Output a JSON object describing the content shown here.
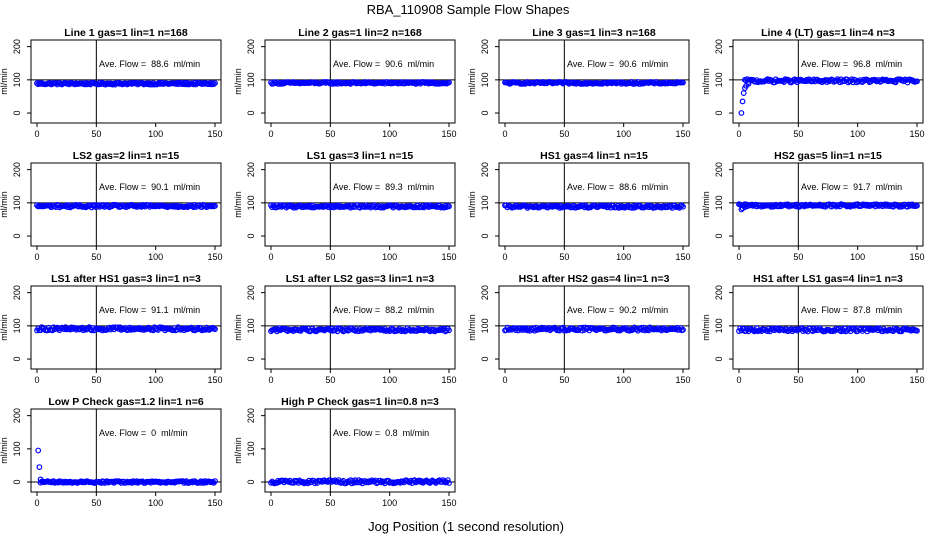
{
  "figure": {
    "title": "RBA_110908  Sample Flow Shapes",
    "xlabel": "Jog Position (1 second resolution)",
    "panel_ylabel": "ml/min",
    "xticks": [
      "0",
      "50",
      "100",
      "150"
    ],
    "yticks": [
      "0",
      "100",
      "200"
    ],
    "colors": {
      "points": "#0000ff",
      "lines": "#000000",
      "background": "#ffffff"
    }
  },
  "chart_data": [
    {
      "type": "scatter",
      "title": "Line 1 gas=1 lin=1 n=168",
      "annotation": "Ave. Flow =  88.6  ml/min",
      "mean": 88.6,
      "xlim": [
        0,
        150
      ],
      "ylim": [
        -30,
        220
      ],
      "hline_y": 100,
      "vline_x": 50,
      "x_range": [
        0,
        150
      ],
      "level": 88.6,
      "spread": 3
    },
    {
      "type": "scatter",
      "title": "Line 2 gas=1 lin=2 n=168",
      "annotation": "Ave. Flow =  90.6  ml/min",
      "mean": 90.6,
      "xlim": [
        0,
        150
      ],
      "ylim": [
        -30,
        220
      ],
      "hline_y": 100,
      "vline_x": 50,
      "x_range": [
        0,
        150
      ],
      "level": 90.6,
      "spread": 3
    },
    {
      "type": "scatter",
      "title": "Line 3 gas=1 lin=3 n=168",
      "annotation": "Ave. Flow =  90.6  ml/min",
      "mean": 90.6,
      "xlim": [
        0,
        150
      ],
      "ylim": [
        -30,
        220
      ],
      "hline_y": 100,
      "vline_x": 50,
      "x_range": [
        0,
        150
      ],
      "level": 90.6,
      "spread": 3
    },
    {
      "type": "scatter",
      "title": "Line 4 (LT) gas=1 lin=4 n=3",
      "annotation": "Ave. Flow =  96.8  ml/min",
      "mean": 96.8,
      "xlim": [
        0,
        150
      ],
      "ylim": [
        -30,
        220
      ],
      "hline_y": 100,
      "vline_x": 50,
      "x_range": [
        5,
        150
      ],
      "level": 97,
      "spread": 5,
      "extra_points": [
        [
          2,
          0
        ],
        [
          3,
          35
        ],
        [
          4,
          60
        ],
        [
          5,
          75
        ],
        [
          6,
          82
        ],
        [
          8,
          88
        ]
      ]
    },
    {
      "type": "scatter",
      "title": "LS2 gas=2 lin=1 n=15",
      "annotation": "Ave. Flow =  90.1  ml/min",
      "mean": 90.1,
      "xlim": [
        0,
        150
      ],
      "ylim": [
        -30,
        220
      ],
      "hline_y": 100,
      "vline_x": 50,
      "x_range": [
        0,
        150
      ],
      "level": 90.1,
      "spread": 4
    },
    {
      "type": "scatter",
      "title": "LS1 gas=3 lin=1 n=15",
      "annotation": "Ave. Flow =  89.3  ml/min",
      "mean": 89.3,
      "xlim": [
        0,
        150
      ],
      "ylim": [
        -30,
        220
      ],
      "hline_y": 100,
      "vline_x": 50,
      "x_range": [
        0,
        150
      ],
      "level": 89.3,
      "spread": 4
    },
    {
      "type": "scatter",
      "title": "HS1 gas=4 lin=1 n=15",
      "annotation": "Ave. Flow =  88.6  ml/min",
      "mean": 88.6,
      "xlim": [
        0,
        150
      ],
      "ylim": [
        -30,
        220
      ],
      "hline_y": 100,
      "vline_x": 50,
      "x_range": [
        0,
        150
      ],
      "level": 88.6,
      "spread": 4
    },
    {
      "type": "scatter",
      "title": "HS2 gas=5 lin=1 n=15",
      "annotation": "Ave. Flow =  91.7  ml/min",
      "mean": 91.7,
      "xlim": [
        0,
        150
      ],
      "ylim": [
        -30,
        220
      ],
      "hline_y": 100,
      "vline_x": 50,
      "x_range": [
        0,
        150
      ],
      "level": 92,
      "spread": 4,
      "extra_points": [
        [
          2,
          80
        ],
        [
          3,
          84
        ],
        [
          5,
          87
        ]
      ]
    },
    {
      "type": "scatter",
      "title": "LS1 after HS1 gas=3 lin=1 n=3",
      "annotation": "Ave. Flow =  91.1  ml/min",
      "mean": 91.1,
      "xlim": [
        0,
        150
      ],
      "ylim": [
        -30,
        220
      ],
      "hline_y": 100,
      "vline_x": 50,
      "x_range": [
        0,
        150
      ],
      "level": 91.1,
      "spread": 5
    },
    {
      "type": "scatter",
      "title": "LS1 after LS2 gas=3 lin=1 n=3",
      "annotation": "Ave. Flow =  88.2  ml/min",
      "mean": 88.2,
      "xlim": [
        0,
        150
      ],
      "ylim": [
        -30,
        220
      ],
      "hline_y": 100,
      "vline_x": 50,
      "x_range": [
        0,
        150
      ],
      "level": 88.2,
      "spread": 5
    },
    {
      "type": "scatter",
      "title": "HS1 after HS2 gas=4 lin=1 n=3",
      "annotation": "Ave. Flow =  90.2  ml/min",
      "mean": 90.2,
      "xlim": [
        0,
        150
      ],
      "ylim": [
        -30,
        220
      ],
      "hline_y": 100,
      "vline_x": 50,
      "x_range": [
        0,
        150
      ],
      "level": 90.2,
      "spread": 5
    },
    {
      "type": "scatter",
      "title": "HS1 after LS1 gas=4 lin=1 n=3",
      "annotation": "Ave. Flow =  87.8  ml/min",
      "mean": 87.8,
      "xlim": [
        0,
        150
      ],
      "ylim": [
        -30,
        220
      ],
      "hline_y": 100,
      "vline_x": 50,
      "x_range": [
        0,
        150
      ],
      "level": 87.8,
      "spread": 5
    },
    {
      "type": "scatter",
      "title": "Low P Check gas=1.2 lin=1 n=6",
      "annotation": "Ave. Flow =  0  ml/min",
      "mean": 0,
      "xlim": [
        0,
        150
      ],
      "ylim": [
        -30,
        220
      ],
      "hline_y": 0,
      "vline_x": 50,
      "x_range": [
        3,
        150
      ],
      "level": 0,
      "spread": 3,
      "extra_points": [
        [
          1,
          95
        ],
        [
          2,
          45
        ],
        [
          3,
          8
        ]
      ]
    },
    {
      "type": "scatter",
      "title": "High P Check gas=1 lin=0.8 n=3",
      "annotation": "Ave. Flow =  0.8  ml/min",
      "mean": 0.8,
      "xlim": [
        0,
        150
      ],
      "ylim": [
        -30,
        220
      ],
      "hline_y": 0,
      "vline_x": 50,
      "x_range": [
        0,
        150
      ],
      "level": 0.8,
      "spread": 5
    }
  ]
}
